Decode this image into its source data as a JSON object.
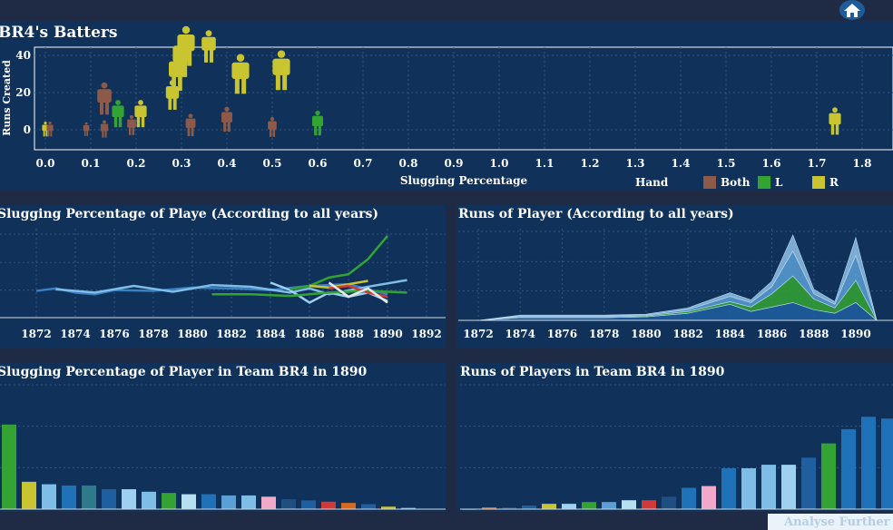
{
  "header": {
    "home_icon": "home-icon"
  },
  "colors": {
    "page_bg": "#1f2b44",
    "panel_bg": "#10325a",
    "grid": "#2f5580",
    "Both": "#8d5a4a",
    "L": "#33a333",
    "R": "#c9c530"
  },
  "scatter": {
    "title": "BR4's Batters",
    "xlabel": "Slugging Percentage",
    "ylabel": "Runs Created",
    "legend_title": "Hand",
    "legend": [
      {
        "name": "Both",
        "color": "#8d5a4a"
      },
      {
        "name": "L",
        "color": "#33a333"
      },
      {
        "name": "R",
        "color": "#c9c530"
      }
    ]
  },
  "slug_line": {
    "title": "Slugging Percentage of Playe (According to all years)"
  },
  "runs_area": {
    "title": "Runs of  Player (According to all years)"
  },
  "slug_bar": {
    "title": "Slugging Percentage of Player in Team BR4 in 1890"
  },
  "runs_bar": {
    "title": "Runs of Players in Team BR4 in 1890"
  },
  "analyse_button": {
    "label": "Analyse Further"
  },
  "chart_data": [
    {
      "type": "scatter",
      "xlim": [
        0.0,
        1.85
      ],
      "ylim": [
        -6,
        44
      ],
      "xticks": [
        "0.0",
        "0.1",
        "0.2",
        "0.3",
        "0.4",
        "0.5",
        "0.6",
        "0.7",
        "0.8",
        "0.9",
        "1.0",
        "1.1",
        "1.2",
        "1.3",
        "1.4",
        "1.5",
        "1.6",
        "1.7",
        "1.8"
      ],
      "yticks": [
        "0",
        "20",
        "40"
      ],
      "points": [
        {
          "x": 0.0,
          "y": 0,
          "hand": "R",
          "size": 0.6
        },
        {
          "x": 0.01,
          "y": 0,
          "hand": "Both",
          "size": 0.6
        },
        {
          "x": 0.09,
          "y": 0,
          "hand": "Both",
          "size": 0.55
        },
        {
          "x": 0.13,
          "y": 16,
          "hand": "Both",
          "size": 1.3
        },
        {
          "x": 0.13,
          "y": 0,
          "hand": "Both",
          "size": 0.7
        },
        {
          "x": 0.16,
          "y": 8,
          "hand": "L",
          "size": 1.1
        },
        {
          "x": 0.19,
          "y": 2,
          "hand": "Both",
          "size": 0.8
        },
        {
          "x": 0.21,
          "y": 8,
          "hand": "R",
          "size": 1.1
        },
        {
          "x": 0.28,
          "y": 18,
          "hand": "R",
          "size": 1.2
        },
        {
          "x": 0.29,
          "y": 30,
          "hand": "R",
          "size": 1.5
        },
        {
          "x": 0.3,
          "y": 38,
          "hand": "R",
          "size": 1.6
        },
        {
          "x": 0.31,
          "y": 44,
          "hand": "R",
          "size": 1.6
        },
        {
          "x": 0.36,
          "y": 44,
          "hand": "R",
          "size": 1.3
        },
        {
          "x": 0.32,
          "y": 2,
          "hand": "Both",
          "size": 0.9
        },
        {
          "x": 0.4,
          "y": 5,
          "hand": "Both",
          "size": 1.0
        },
        {
          "x": 0.43,
          "y": 29,
          "hand": "R",
          "size": 1.6
        },
        {
          "x": 0.5,
          "y": 1,
          "hand": "Both",
          "size": 0.8
        },
        {
          "x": 0.52,
          "y": 31,
          "hand": "R",
          "size": 1.6
        },
        {
          "x": 0.6,
          "y": 3,
          "hand": "L",
          "size": 1.0
        },
        {
          "x": 1.74,
          "y": 4,
          "hand": "R",
          "size": 1.1
        }
      ]
    },
    {
      "type": "line",
      "x_labels": [
        "1872",
        "1874",
        "1876",
        "1878",
        "1880",
        "1882",
        "1884",
        "1886",
        "1888",
        "1890",
        "1892"
      ],
      "xlim": [
        1871,
        1893
      ],
      "ylim": [
        0,
        1.0
      ],
      "series": [
        {
          "color": "#3b7fc4",
          "values": [
            [
              1872,
              0.32
            ],
            [
              1873,
              0.35
            ],
            [
              1874,
              0.3
            ],
            [
              1875,
              0.28
            ],
            [
              1876,
              0.33
            ],
            [
              1878,
              0.32
            ],
            [
              1880,
              0.36
            ],
            [
              1882,
              0.35
            ],
            [
              1884,
              0.33
            ],
            [
              1886,
              0.38
            ],
            [
              1888,
              0.4
            ],
            [
              1890,
              0.28
            ]
          ]
        },
        {
          "color": "#7dbde6",
          "values": [
            [
              1873,
              0.34
            ],
            [
              1875,
              0.3
            ],
            [
              1877,
              0.38
            ],
            [
              1879,
              0.31
            ],
            [
              1881,
              0.39
            ],
            [
              1883,
              0.37
            ],
            [
              1885,
              0.3
            ],
            [
              1886,
              0.35
            ],
            [
              1887,
              0.28
            ],
            [
              1889,
              0.37
            ],
            [
              1891,
              0.45
            ]
          ]
        },
        {
          "color": "#9ed0ef",
          "values": [
            [
              1884,
              0.42
            ],
            [
              1885,
              0.33
            ],
            [
              1886,
              0.18
            ],
            [
              1887,
              0.3
            ],
            [
              1888,
              0.25
            ],
            [
              1889,
              0.3
            ],
            [
              1890,
              0.2
            ]
          ]
        },
        {
          "color": "#33a333",
          "values": [
            [
              1885,
              0.34
            ],
            [
              1886,
              0.38
            ],
            [
              1887,
              0.48
            ],
            [
              1888,
              0.52
            ],
            [
              1889,
              0.7
            ],
            [
              1890,
              0.98
            ]
          ]
        },
        {
          "color": "#33a333",
          "values": [
            [
              1881,
              0.28
            ],
            [
              1883,
              0.28
            ],
            [
              1885,
              0.26
            ],
            [
              1887,
              0.3
            ],
            [
              1889,
              0.32
            ],
            [
              1891,
              0.3
            ]
          ]
        },
        {
          "color": "#c9c530",
          "values": [
            [
              1886,
              0.38
            ],
            [
              1887,
              0.36
            ],
            [
              1888,
              0.4
            ],
            [
              1889,
              0.44
            ]
          ]
        },
        {
          "color": "#d23a3a",
          "values": [
            [
              1887,
              0.35
            ],
            [
              1888,
              0.38
            ],
            [
              1889,
              0.3
            ],
            [
              1890,
              0.25
            ]
          ]
        },
        {
          "color": "#e8e8e8",
          "values": [
            [
              1887,
              0.42
            ],
            [
              1888,
              0.25
            ],
            [
              1889,
              0.35
            ],
            [
              1890,
              0.18
            ]
          ]
        }
      ]
    },
    {
      "type": "area",
      "x_labels": [
        "1872",
        "1874",
        "1876",
        "1878",
        "1880",
        "1882",
        "1884",
        "1886",
        "1888",
        "1890"
      ],
      "xlim": [
        1871,
        1891
      ],
      "ylim": [
        0,
        100
      ],
      "years": [
        1872,
        1874,
        1876,
        1878,
        1880,
        1882,
        1884,
        1885,
        1886,
        1887,
        1888,
        1889,
        1890,
        1891
      ],
      "series": [
        {
          "color": "#1f5fa0",
          "values": [
            0,
            3,
            3,
            3,
            4,
            8,
            18,
            10,
            15,
            20,
            12,
            8,
            20,
            0
          ]
        },
        {
          "color": "#33a333",
          "values": [
            0,
            1,
            1,
            1,
            1,
            2,
            3,
            5,
            15,
            30,
            12,
            6,
            25,
            0
          ]
        },
        {
          "color": "#5a9fd6",
          "values": [
            0,
            1,
            1,
            1,
            1,
            2,
            6,
            5,
            8,
            28,
            6,
            4,
            28,
            0
          ]
        },
        {
          "color": "#8fc1e8",
          "values": [
            0,
            1,
            1,
            1,
            1,
            2,
            4,
            3,
            6,
            18,
            5,
            3,
            20,
            0
          ]
        }
      ]
    },
    {
      "type": "bar",
      "values": [
        0.68,
        0.22,
        0.2,
        0.19,
        0.19,
        0.16,
        0.16,
        0.14,
        0.13,
        0.12,
        0.12,
        0.11,
        0.11,
        0.1,
        0.08,
        0.07,
        0.06,
        0.05,
        0.04,
        0.02,
        0.01
      ],
      "colors": [
        "#33a333",
        "#c9c530",
        "#7dbde6",
        "#1f72b8",
        "#2f7a8a",
        "#1f5fa0",
        "#9ed0ef",
        "#7dbde6",
        "#33a333",
        "#b5e0f0",
        "#1f72b8",
        "#5a9fd6",
        "#7dbde6",
        "#f2a8c8",
        "#1f4f80",
        "#1f5fa0",
        "#d23a3a",
        "#d86a20",
        "#1f5fa0",
        "#c9c530",
        "#7dbde6"
      ],
      "ylim": [
        0,
        1.0
      ]
    },
    {
      "type": "bar",
      "values": [
        0,
        1,
        1,
        2,
        3,
        3,
        4,
        4,
        5,
        5,
        7,
        12,
        13,
        23,
        23,
        25,
        25,
        29,
        37,
        45,
        52,
        51
      ],
      "colors": [
        "#1f5fa0",
        "#d86a20",
        "#1f4f80",
        "#1f5fa0",
        "#c9c530",
        "#9ed0ef",
        "#33a333",
        "#5a9fd6",
        "#b5e0f0",
        "#d23a3a",
        "#1f4f80",
        "#1f72b8",
        "#f2a8c8",
        "#1f72b8",
        "#7dbde6",
        "#7dbde6",
        "#9ed0ef",
        "#1f5fa0",
        "#33a333",
        "#1f72b8",
        "#1f72b8",
        "#1f72b8"
      ],
      "ylim": [
        0,
        70
      ]
    }
  ]
}
